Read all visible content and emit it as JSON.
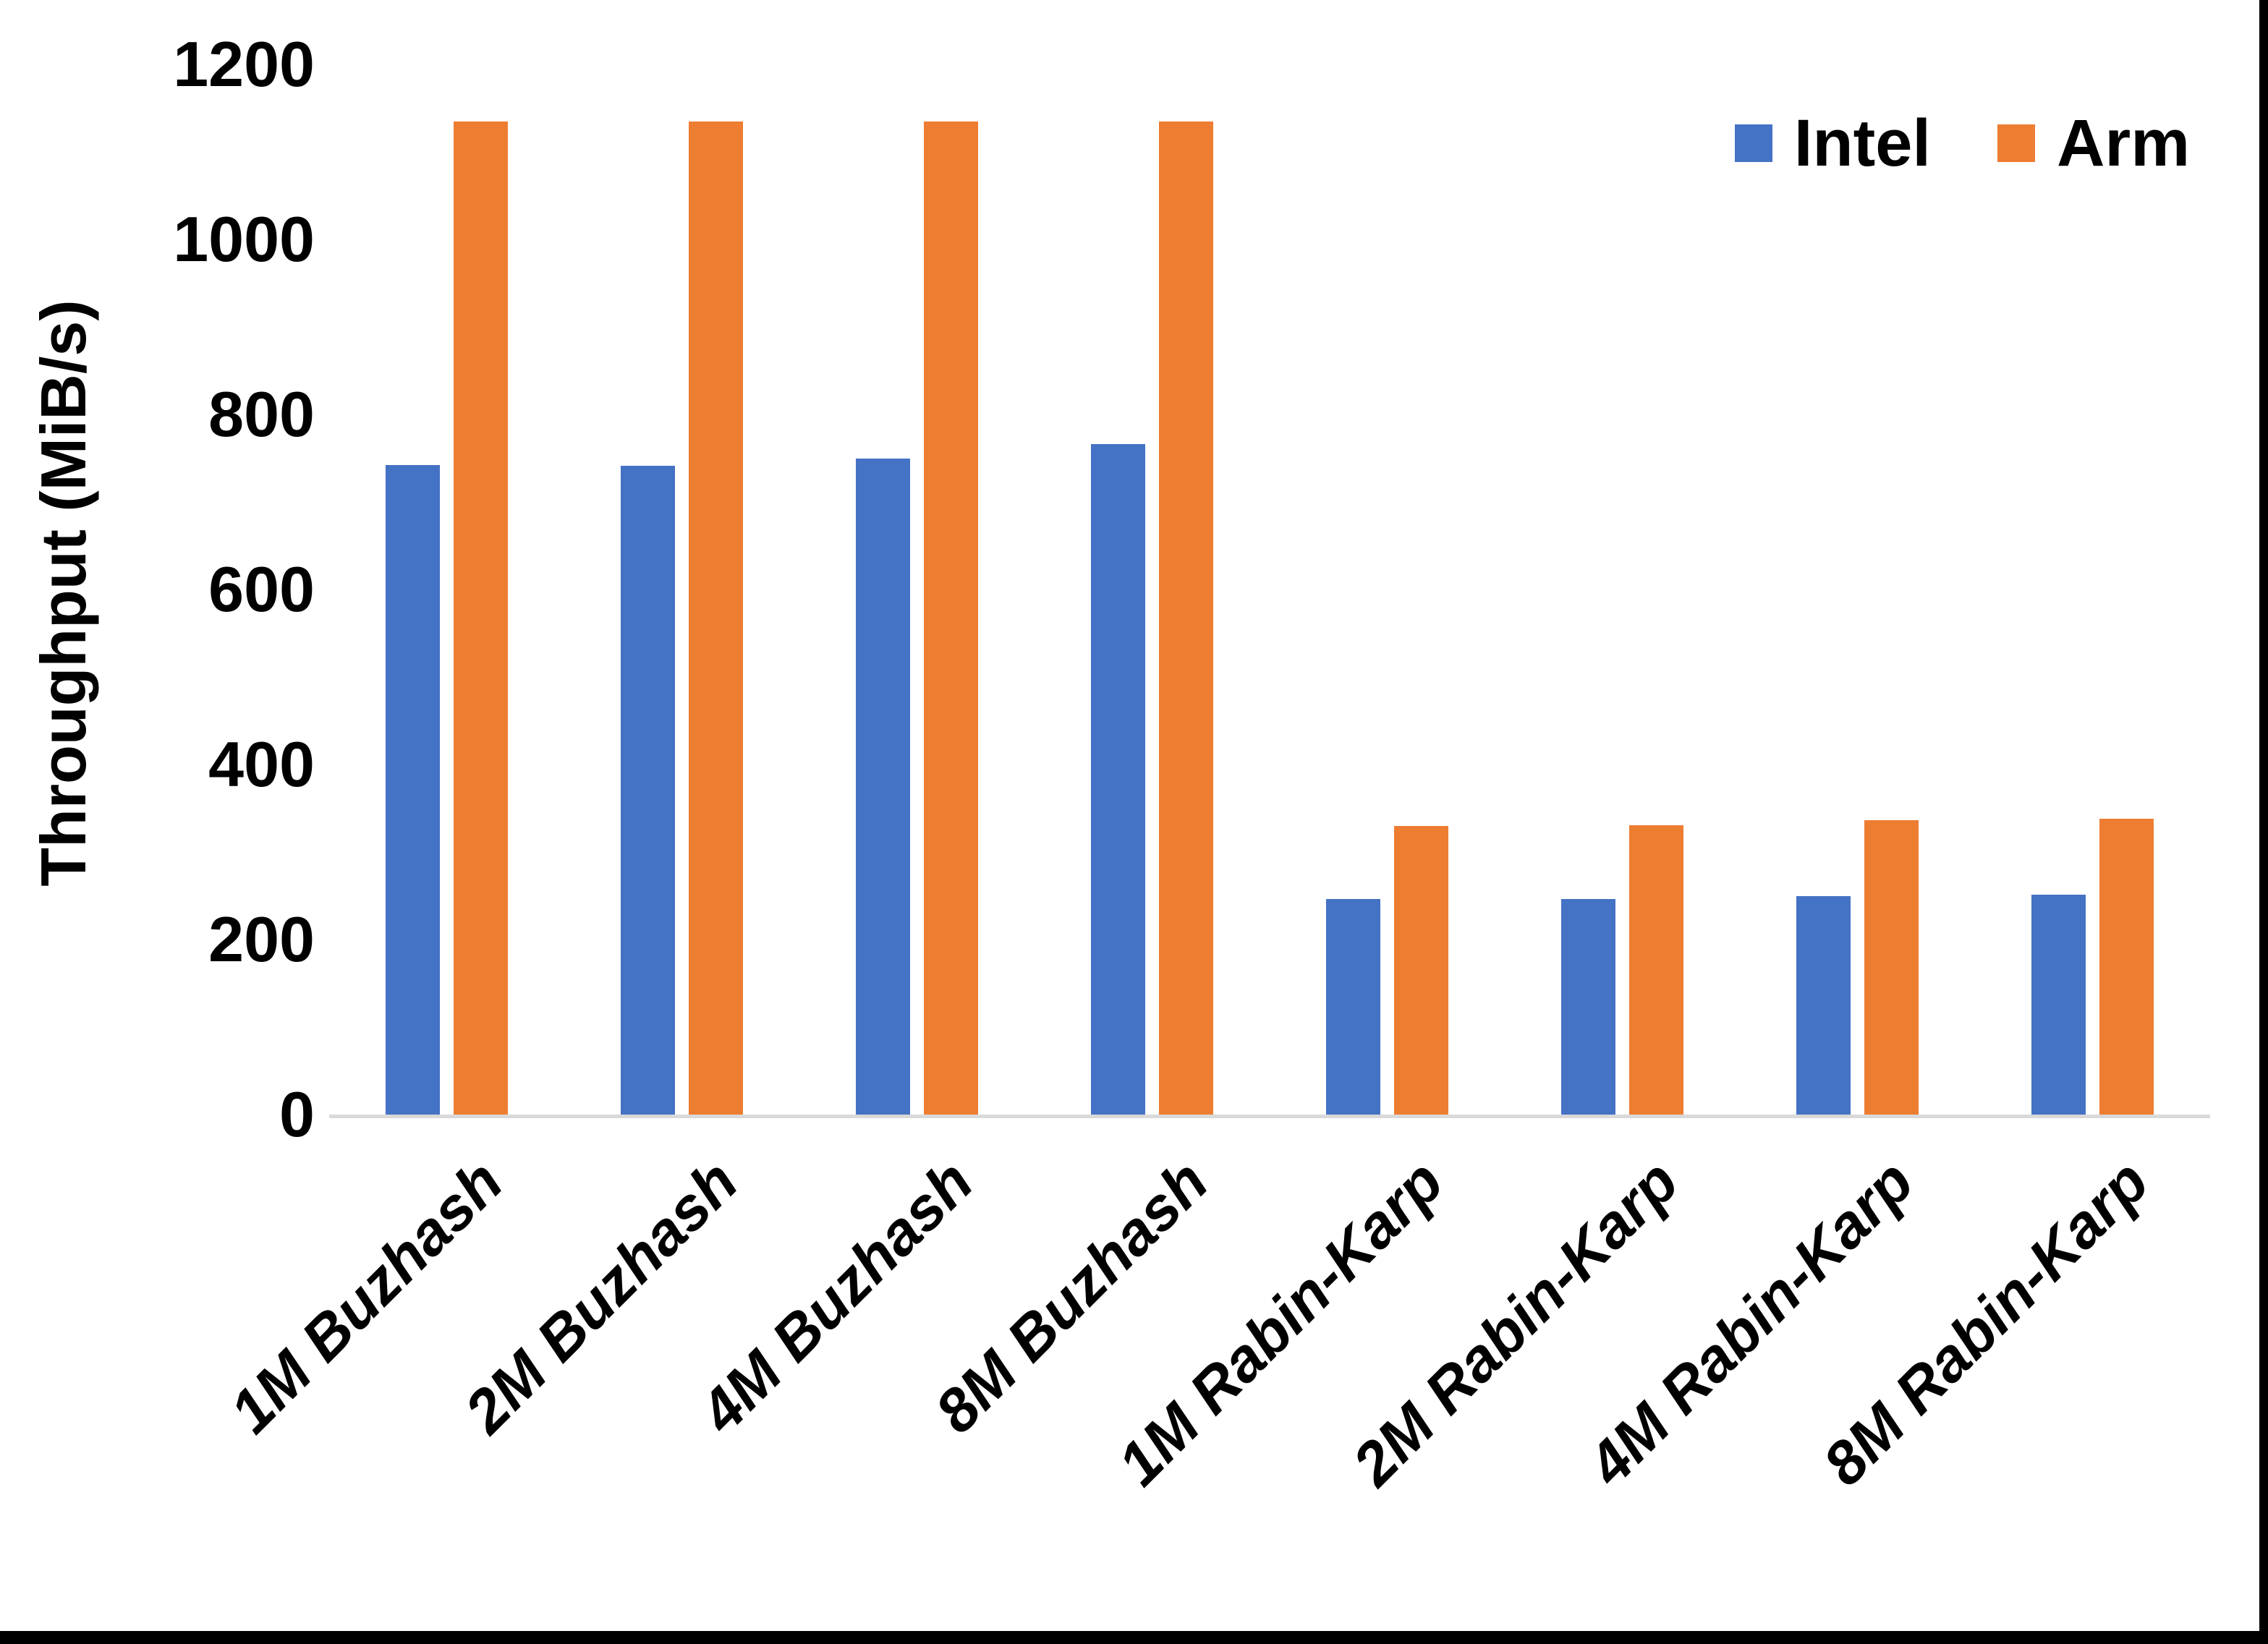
{
  "chart_data": {
    "type": "bar",
    "title": "",
    "categories": [
      "1M Buzhash",
      "2M Buzhash",
      "4M Buzhash",
      "8M Buzhash",
      "1M Rabin-Karp",
      "2M Rabin-Karp",
      "4M Rabin-Karp",
      "8M Rabin-Karp"
    ],
    "series": [
      {
        "name": "Intel",
        "color": "#4472C4",
        "values": [
          742,
          741,
          750,
          766,
          246,
          246,
          250,
          251
        ]
      },
      {
        "name": "Arm",
        "color": "#ED7D31",
        "values": [
          1135,
          1135,
          1135,
          1135,
          330,
          331,
          336,
          338
        ]
      }
    ],
    "xlabel": "",
    "ylabel": "Throughput (MiB/s)",
    "ylim": [
      0,
      1200
    ],
    "yticks": [
      0,
      200,
      400,
      600,
      800,
      1000,
      1200
    ],
    "grid": false,
    "legend_position": "top-right",
    "xtick_rotation_deg": 45,
    "xtick_style": "italic",
    "axis_line_color": "#d9d9d9",
    "text_color": "#000000",
    "background_color": "#ffffff"
  }
}
